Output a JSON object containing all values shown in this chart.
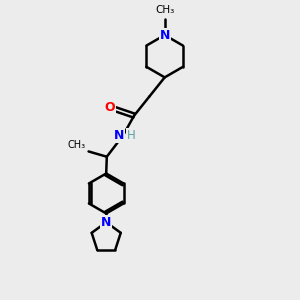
{
  "bg_color": "#ececec",
  "line_color": "#000000",
  "N_color": "#0000ff",
  "O_color": "#ff0000",
  "H_color": "#5f9ea0",
  "line_width": 1.8,
  "font_size": 9,
  "figsize": [
    3.0,
    3.0
  ],
  "dpi": 100,
  "xlim": [
    0,
    10
  ],
  "ylim": [
    0,
    10
  ]
}
